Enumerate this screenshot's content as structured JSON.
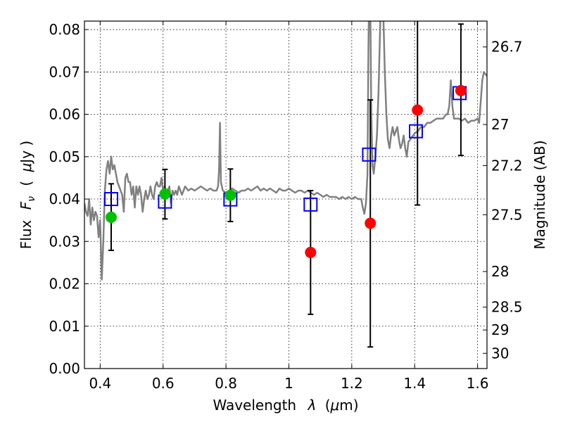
{
  "chart_data": {
    "type": "scatter",
    "xlabel_text": "Wavelength",
    "xlabel_symbol": "λ",
    "xlabel_unit_open": "(",
    "xlabel_unit_mu": "μ",
    "xlabel_unit_rest": "m)",
    "ylabel_text": "Flux",
    "ylabel_symbol": "F",
    "ylabel_subscript": "ν",
    "ylabel_unit_open": "(",
    "ylabel_unit_mu": "μ",
    "ylabel_unit_rest": "Jy )",
    "y2label": "Magnitude (AB)",
    "xlim": [
      0.35,
      1.63
    ],
    "ylim": [
      0.0,
      0.082
    ],
    "xticks": [
      0.4,
      0.6,
      0.8,
      1.0,
      1.2,
      1.4,
      1.6
    ],
    "xtick_labels": [
      "0.4",
      "0.6",
      "0.8",
      "1",
      "1.2",
      "1.4",
      "1.6"
    ],
    "yticks": [
      0.0,
      0.01,
      0.02,
      0.03,
      0.04,
      0.05,
      0.06,
      0.07,
      0.08
    ],
    "ytick_labels": [
      "0.00",
      "0.01",
      "0.02",
      "0.03",
      "0.04",
      "0.05",
      "0.06",
      "0.07",
      "0.08"
    ],
    "y2_ticks": [
      {
        "label": "26.7",
        "flux": 0.0759
      },
      {
        "label": "27",
        "flux": 0.0576
      },
      {
        "label": "27.2",
        "flux": 0.0479
      },
      {
        "label": "27.5",
        "flux": 0.0363
      },
      {
        "label": "28",
        "flux": 0.0229
      },
      {
        "label": "28.5",
        "flux": 0.0145
      },
      {
        "label": "29",
        "flux": 0.0091
      },
      {
        "label": "30",
        "flux": 0.0036
      }
    ],
    "grid": true,
    "colors": {
      "model": "#808080",
      "model_photometry": "#0000ff",
      "green_points": "#00c000",
      "red_points": "#ff0000",
      "error_bars": "#000000"
    },
    "series": [
      {
        "kind": "model_spectrum",
        "points": [
          [
            0.35,
            0.039
          ],
          [
            0.355,
            0.037
          ],
          [
            0.36,
            0.036
          ],
          [
            0.365,
            0.04
          ],
          [
            0.37,
            0.034
          ],
          [
            0.375,
            0.038
          ],
          [
            0.38,
            0.035
          ],
          [
            0.385,
            0.037
          ],
          [
            0.39,
            0.036
          ],
          [
            0.395,
            0.031
          ],
          [
            0.4,
            0.035
          ],
          [
            0.405,
            0.021
          ],
          [
            0.41,
            0.03
          ],
          [
            0.415,
            0.042
          ],
          [
            0.42,
            0.047
          ],
          [
            0.425,
            0.049
          ],
          [
            0.43,
            0.046
          ],
          [
            0.435,
            0.05
          ],
          [
            0.44,
            0.047
          ],
          [
            0.445,
            0.048
          ],
          [
            0.45,
            0.046
          ],
          [
            0.455,
            0.044
          ],
          [
            0.46,
            0.043
          ],
          [
            0.465,
            0.042
          ],
          [
            0.47,
            0.041
          ],
          [
            0.475,
            0.037
          ],
          [
            0.48,
            0.045
          ],
          [
            0.485,
            0.046
          ],
          [
            0.49,
            0.044
          ],
          [
            0.495,
            0.044
          ],
          [
            0.5,
            0.041
          ],
          [
            0.505,
            0.043
          ],
          [
            0.51,
            0.038
          ],
          [
            0.515,
            0.043
          ],
          [
            0.52,
            0.041
          ],
          [
            0.525,
            0.043
          ],
          [
            0.53,
            0.041
          ],
          [
            0.535,
            0.037
          ],
          [
            0.54,
            0.04
          ],
          [
            0.545,
            0.042
          ],
          [
            0.55,
            0.04
          ],
          [
            0.555,
            0.041
          ],
          [
            0.56,
            0.043
          ],
          [
            0.565,
            0.041
          ],
          [
            0.57,
            0.04
          ],
          [
            0.575,
            0.043
          ],
          [
            0.58,
            0.044
          ],
          [
            0.585,
            0.043
          ],
          [
            0.59,
            0.043
          ],
          [
            0.595,
            0.045
          ],
          [
            0.6,
            0.042
          ],
          [
            0.605,
            0.043
          ],
          [
            0.61,
            0.041
          ],
          [
            0.615,
            0.042
          ],
          [
            0.62,
            0.043
          ],
          [
            0.625,
            0.039
          ],
          [
            0.63,
            0.042
          ],
          [
            0.635,
            0.041
          ],
          [
            0.64,
            0.042
          ],
          [
            0.645,
            0.041
          ],
          [
            0.65,
            0.043
          ],
          [
            0.655,
            0.042
          ],
          [
            0.66,
            0.041
          ],
          [
            0.665,
            0.042
          ],
          [
            0.67,
            0.043
          ],
          [
            0.68,
            0.042
          ],
          [
            0.69,
            0.0425
          ],
          [
            0.7,
            0.042
          ],
          [
            0.71,
            0.0425
          ],
          [
            0.72,
            0.043
          ],
          [
            0.73,
            0.0425
          ],
          [
            0.74,
            0.042
          ],
          [
            0.75,
            0.0425
          ],
          [
            0.76,
            0.042
          ],
          [
            0.77,
            0.042
          ],
          [
            0.775,
            0.043
          ],
          [
            0.778,
            0.047
          ],
          [
            0.781,
            0.058
          ],
          [
            0.784,
            0.044
          ],
          [
            0.79,
            0.042
          ],
          [
            0.8,
            0.0415
          ],
          [
            0.81,
            0.042
          ],
          [
            0.82,
            0.0425
          ],
          [
            0.83,
            0.042
          ],
          [
            0.84,
            0.0415
          ],
          [
            0.85,
            0.042
          ],
          [
            0.86,
            0.042
          ],
          [
            0.87,
            0.0425
          ],
          [
            0.88,
            0.042
          ],
          [
            0.89,
            0.0425
          ],
          [
            0.9,
            0.043
          ],
          [
            0.91,
            0.042
          ],
          [
            0.92,
            0.0425
          ],
          [
            0.93,
            0.042
          ],
          [
            0.94,
            0.0425
          ],
          [
            0.95,
            0.042
          ],
          [
            0.96,
            0.0415
          ],
          [
            0.97,
            0.0425
          ],
          [
            0.98,
            0.042
          ],
          [
            0.99,
            0.042
          ],
          [
            1.0,
            0.0425
          ],
          [
            1.01,
            0.042
          ],
          [
            1.02,
            0.0415
          ],
          [
            1.03,
            0.042
          ],
          [
            1.04,
            0.042
          ],
          [
            1.05,
            0.0415
          ],
          [
            1.06,
            0.042
          ],
          [
            1.07,
            0.0415
          ],
          [
            1.08,
            0.041
          ],
          [
            1.09,
            0.0415
          ],
          [
            1.1,
            0.041
          ],
          [
            1.11,
            0.0405
          ],
          [
            1.12,
            0.041
          ],
          [
            1.13,
            0.0405
          ],
          [
            1.14,
            0.0405
          ],
          [
            1.15,
            0.0405
          ],
          [
            1.16,
            0.04
          ],
          [
            1.17,
            0.0405
          ],
          [
            1.18,
            0.04
          ],
          [
            1.19,
            0.0405
          ],
          [
            1.2,
            0.04
          ],
          [
            1.21,
            0.0405
          ],
          [
            1.22,
            0.04
          ],
          [
            1.23,
            0.04
          ],
          [
            1.235,
            0.038
          ],
          [
            1.24,
            0.0365
          ],
          [
            1.245,
            0.039
          ],
          [
            1.25,
            0.046
          ],
          [
            1.253,
            0.075
          ],
          [
            1.256,
            0.095
          ],
          [
            1.259,
            0.085
          ],
          [
            1.262,
            0.06
          ],
          [
            1.266,
            0.048
          ],
          [
            1.27,
            0.046
          ],
          [
            1.275,
            0.05
          ],
          [
            1.28,
            0.055
          ],
          [
            1.285,
            0.065
          ],
          [
            1.29,
            0.08
          ],
          [
            1.295,
            0.095
          ],
          [
            1.3,
            0.085
          ],
          [
            1.305,
            0.07
          ],
          [
            1.31,
            0.06
          ],
          [
            1.315,
            0.054
          ],
          [
            1.32,
            0.052
          ],
          [
            1.325,
            0.055
          ],
          [
            1.33,
            0.057
          ],
          [
            1.335,
            0.055
          ],
          [
            1.34,
            0.056
          ],
          [
            1.345,
            0.057
          ],
          [
            1.35,
            0.054
          ],
          [
            1.355,
            0.052
          ],
          [
            1.36,
            0.053
          ],
          [
            1.365,
            0.055
          ],
          [
            1.37,
            0.052
          ],
          [
            1.375,
            0.05
          ],
          [
            1.38,
            0.0535
          ],
          [
            1.39,
            0.0545
          ],
          [
            1.4,
            0.0555
          ],
          [
            1.41,
            0.056
          ],
          [
            1.42,
            0.057
          ],
          [
            1.43,
            0.057
          ],
          [
            1.44,
            0.058
          ],
          [
            1.45,
            0.058
          ],
          [
            1.46,
            0.0585
          ],
          [
            1.47,
            0.059
          ],
          [
            1.48,
            0.059
          ],
          [
            1.49,
            0.059
          ],
          [
            1.5,
            0.06
          ],
          [
            1.505,
            0.06
          ],
          [
            1.51,
            0.062
          ],
          [
            1.515,
            0.068
          ],
          [
            1.52,
            0.062
          ],
          [
            1.525,
            0.059
          ],
          [
            1.53,
            0.059
          ],
          [
            1.54,
            0.059
          ],
          [
            1.55,
            0.0585
          ],
          [
            1.56,
            0.059
          ],
          [
            1.57,
            0.058
          ],
          [
            1.58,
            0.0585
          ],
          [
            1.59,
            0.0585
          ],
          [
            1.6,
            0.059
          ],
          [
            1.605,
            0.058
          ],
          [
            1.61,
            0.063
          ],
          [
            1.615,
            0.068
          ],
          [
            1.62,
            0.07
          ],
          [
            1.63,
            0.069
          ]
        ]
      },
      {
        "kind": "model_photometry_squares",
        "points": [
          {
            "x": 0.435,
            "y": 0.04
          },
          {
            "x": 0.606,
            "y": 0.0394
          },
          {
            "x": 0.814,
            "y": 0.0399
          },
          {
            "x": 1.069,
            "y": 0.0387
          },
          {
            "x": 1.255,
            "y": 0.0505
          },
          {
            "x": 1.404,
            "y": 0.056
          },
          {
            "x": 1.543,
            "y": 0.065
          }
        ]
      },
      {
        "kind": "observed_green",
        "points": [
          {
            "x": 0.435,
            "y": 0.0357,
            "ylow": 0.0279,
            "yhigh": 0.0436
          },
          {
            "x": 0.606,
            "y": 0.0412,
            "ylow": 0.0353,
            "yhigh": 0.047
          },
          {
            "x": 0.814,
            "y": 0.0409,
            "ylow": 0.0347,
            "yhigh": 0.0471
          }
        ]
      },
      {
        "kind": "observed_red",
        "points": [
          {
            "x": 1.069,
            "y": 0.0274,
            "ylow": 0.0128,
            "yhigh": 0.042
          },
          {
            "x": 1.259,
            "y": 0.0343,
            "ylow": 0.0051,
            "yhigh": 0.0634
          },
          {
            "x": 1.409,
            "y": 0.061,
            "ylow": 0.0386,
            "yhigh": 0.083
          },
          {
            "x": 1.547,
            "y": 0.0656,
            "ylow": 0.0503,
            "yhigh": 0.0813
          }
        ]
      }
    ]
  }
}
